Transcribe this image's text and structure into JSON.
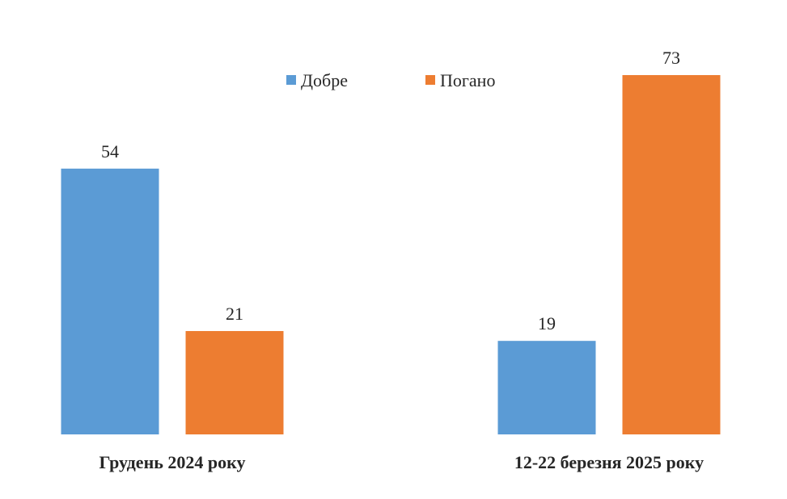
{
  "chart_data": {
    "type": "bar",
    "categories": [
      "Грудень 2024 року",
      "12-22 березня 2025 року"
    ],
    "series": [
      {
        "name": "Добре",
        "values": [
          54,
          19
        ],
        "color": "#5B9BD5"
      },
      {
        "name": "Погано",
        "values": [
          21,
          73
        ],
        "color": "#ED7D31"
      }
    ],
    "title": "",
    "xlabel": "",
    "ylabel": "",
    "ylim": [
      0,
      80
    ],
    "grid": false,
    "legend_position": "top"
  }
}
